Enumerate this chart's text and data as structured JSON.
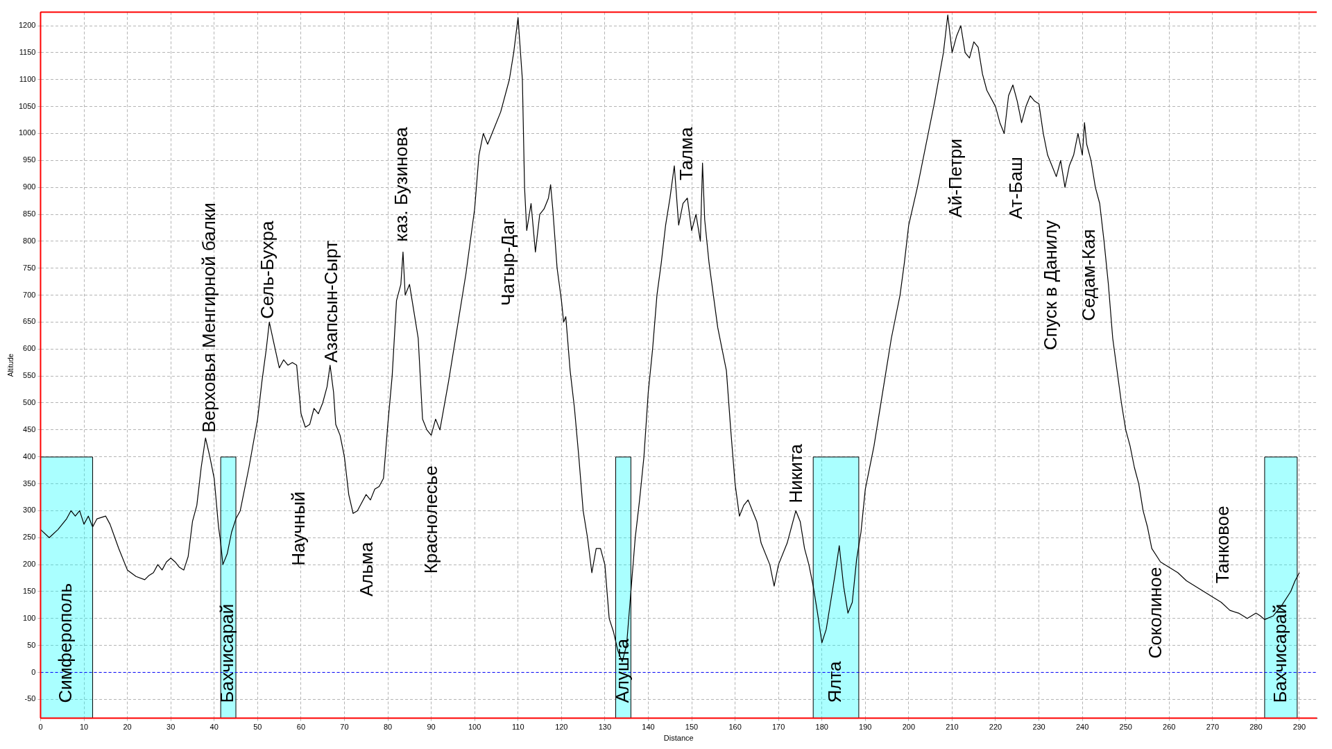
{
  "chart_data": {
    "type": "line",
    "xlabel": "Distance",
    "ylabel": "Altitude",
    "xlim": [
      0,
      294
    ],
    "ylim": [
      -85,
      1225
    ],
    "xticks": [
      0,
      10,
      20,
      30,
      40,
      50,
      60,
      70,
      80,
      90,
      100,
      110,
      120,
      130,
      140,
      150,
      160,
      170,
      180,
      190,
      200,
      210,
      220,
      230,
      240,
      250,
      260,
      270,
      280,
      290
    ],
    "yticks": [
      -50,
      0,
      50,
      100,
      150,
      200,
      250,
      300,
      350,
      400,
      450,
      500,
      550,
      600,
      650,
      700,
      750,
      800,
      850,
      900,
      950,
      1000,
      1050,
      1100,
      1150,
      1200
    ],
    "grid": true,
    "legend": false,
    "marker": "none",
    "line_style": "solid",
    "series": [
      {
        "color": "#000000",
        "x": [
          0,
          2,
          4,
          6,
          7,
          8,
          9,
          10,
          11,
          12,
          13,
          15,
          16,
          18,
          20,
          22,
          24,
          25,
          26,
          27,
          28,
          29,
          30,
          31,
          32,
          33,
          34,
          35,
          36,
          37,
          38,
          39,
          40,
          41,
          41.5,
          42,
          43,
          44,
          45,
          46,
          48,
          50,
          51,
          52,
          52.7,
          53.5,
          55,
          56,
          57,
          58,
          59,
          60,
          61,
          62,
          63,
          64,
          65,
          66,
          66.7,
          67.5,
          68,
          69,
          70,
          71,
          72,
          73,
          74,
          75,
          76,
          77,
          78,
          79,
          80,
          81,
          82,
          83,
          83.5,
          84,
          85,
          86,
          87,
          88,
          89,
          90,
          91,
          92,
          94,
          96,
          98,
          100,
          101,
          102,
          103,
          104,
          106,
          108,
          109,
          110,
          111,
          111.5,
          112,
          113,
          114,
          115,
          116,
          117,
          117.5,
          118,
          119,
          120,
          120.5,
          121,
          122,
          123,
          124,
          125,
          126,
          127,
          128,
          129,
          130,
          131,
          132,
          133,
          134,
          135,
          136,
          137,
          138,
          139,
          140,
          141,
          142,
          143,
          144,
          145,
          146,
          147,
          148,
          149,
          150,
          151,
          152,
          152.5,
          153,
          154,
          155,
          156,
          157,
          158,
          159,
          160,
          161,
          162,
          163,
          164,
          165,
          166,
          168,
          169,
          170,
          172,
          174,
          175,
          176,
          177,
          178,
          179,
          180,
          181,
          182,
          183,
          184,
          185,
          186,
          187,
          188,
          189,
          190,
          192,
          194,
          196,
          198,
          199,
          200,
          202,
          204,
          206,
          208,
          209,
          210,
          211,
          212,
          213,
          214,
          215,
          216,
          217,
          218,
          220,
          221,
          222,
          223,
          224,
          225,
          226,
          227,
          228,
          229,
          230,
          231,
          232,
          233,
          234,
          235,
          236,
          237,
          238,
          239,
          240,
          240.5,
          241,
          242,
          243,
          244,
          245,
          246,
          247,
          248,
          249,
          250,
          251,
          252,
          253,
          254,
          255,
          256,
          258,
          260,
          262,
          264,
          266,
          268,
          270,
          272,
          274,
          276,
          278,
          280,
          281,
          282,
          284,
          286,
          288,
          289,
          290
        ],
        "values": [
          265,
          250,
          265,
          285,
          300,
          290,
          300,
          275,
          290,
          270,
          285,
          290,
          275,
          230,
          190,
          178,
          172,
          180,
          185,
          200,
          190,
          205,
          212,
          205,
          195,
          190,
          215,
          280,
          310,
          380,
          435,
          400,
          360,
          270,
          240,
          200,
          220,
          260,
          285,
          300,
          380,
          470,
          540,
          600,
          650,
          620,
          565,
          580,
          570,
          575,
          570,
          480,
          455,
          460,
          490,
          480,
          500,
          530,
          570,
          520,
          460,
          440,
          400,
          330,
          295,
          300,
          315,
          330,
          320,
          340,
          345,
          360,
          460,
          550,
          690,
          720,
          780,
          700,
          720,
          670,
          620,
          470,
          450,
          440,
          470,
          450,
          540,
          640,
          740,
          860,
          960,
          1000,
          980,
          1000,
          1040,
          1100,
          1150,
          1215,
          1100,
          900,
          820,
          870,
          780,
          850,
          860,
          880,
          905,
          860,
          750,
          690,
          650,
          660,
          560,
          490,
          400,
          300,
          250,
          185,
          230,
          230,
          200,
          100,
          75,
          40,
          20,
          50,
          150,
          250,
          320,
          400,
          520,
          600,
          700,
          760,
          830,
          880,
          940,
          830,
          870,
          880,
          820,
          850,
          800,
          945,
          840,
          760,
          700,
          640,
          600,
          560,
          450,
          350,
          290,
          310,
          320,
          300,
          280,
          240,
          200,
          160,
          200,
          240,
          300,
          280,
          230,
          200,
          160,
          110,
          55,
          80,
          130,
          180,
          235,
          160,
          110,
          130,
          210,
          260,
          340,
          420,
          520,
          620,
          700,
          760,
          830,
          900,
          980,
          1060,
          1150,
          1220,
          1150,
          1180,
          1200,
          1150,
          1140,
          1170,
          1160,
          1110,
          1080,
          1050,
          1020,
          1000,
          1070,
          1090,
          1060,
          1020,
          1050,
          1070,
          1060,
          1055,
          1000,
          960,
          940,
          920,
          950,
          900,
          940,
          960,
          1000,
          960,
          1020,
          980,
          950,
          900,
          870,
          800,
          720,
          620,
          560,
          500,
          450,
          420,
          380,
          350,
          300,
          270,
          230,
          205,
          195,
          185,
          170,
          160,
          150,
          140,
          130,
          115,
          110,
          100,
          110,
          105,
          98,
          105,
          125,
          150,
          170,
          185
        ]
      }
    ],
    "ref_lines": [
      {
        "axis": "y",
        "value": 0,
        "color": "#0000ff",
        "line_style": "dashed"
      }
    ],
    "bands": [
      {
        "axis": "x",
        "from": 0,
        "to": 12,
        "label": "Симферополь",
        "color": "#00ffff"
      },
      {
        "axis": "x",
        "from": 41.5,
        "to": 45,
        "label": "Бахчисарай",
        "color": "#00ffff"
      },
      {
        "axis": "x",
        "from": 132.5,
        "to": 136,
        "label": "Алушта",
        "color": "#00ffff"
      },
      {
        "axis": "x",
        "from": 178,
        "to": 188.5,
        "label": "Ялта",
        "color": "#00ffff"
      },
      {
        "axis": "x",
        "from": 282,
        "to": 289.5,
        "label": "Бахчисарай",
        "color": "#00ffff"
      }
    ],
    "annotations": [
      "Верховья Менгирной балки",
      "Сель-Бухра",
      "Научный",
      "Азапсын-Сырт",
      "Альма",
      "каз. Бузинова",
      "Краснолесье",
      "Чатыр-Даг",
      "Талма",
      "Никита",
      "Ай-Петри",
      "Ат-Баш",
      "Спуск в Данилу",
      "Седам-Кая",
      "Соколиное",
      "Танковое"
    ]
  }
}
